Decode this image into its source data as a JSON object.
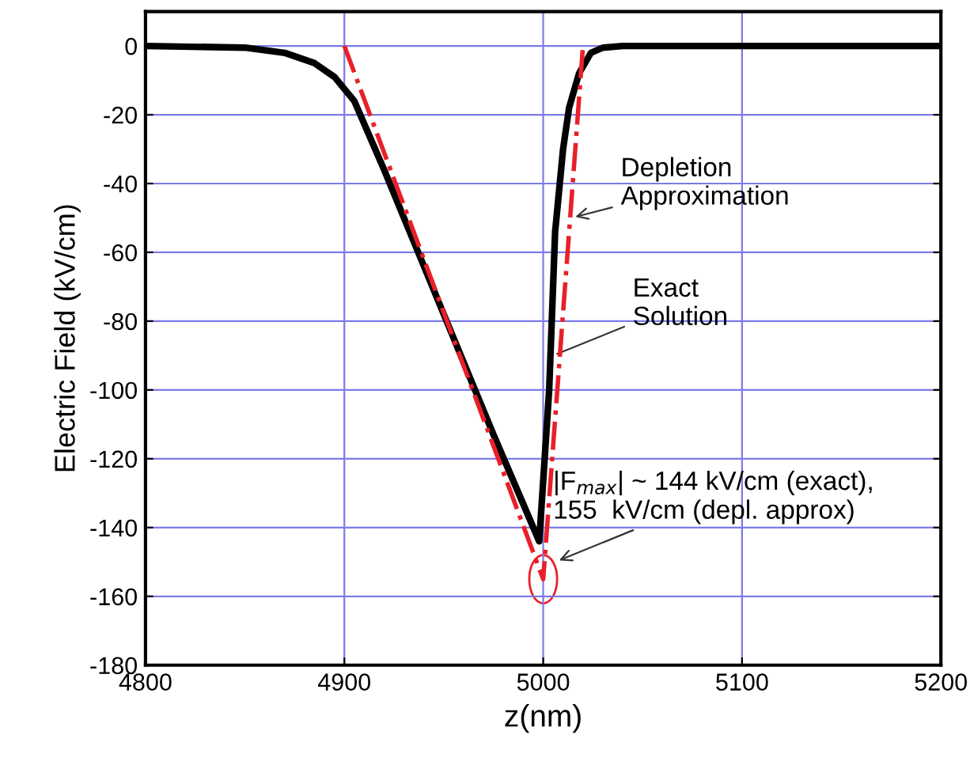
{
  "chart_data": {
    "type": "line",
    "xlabel": "z(nm)",
    "ylabel": "Electric Field (kV/cm)",
    "xlim": [
      4800,
      5200
    ],
    "xticks": [
      4800,
      4900,
      5000,
      5100,
      5200
    ],
    "ylim": [
      -180,
      10
    ],
    "yticks": [
      0,
      -20,
      -40,
      -60,
      -80,
      -100,
      -120,
      -140,
      -160,
      -180
    ],
    "grid": true,
    "legend": false,
    "series": [
      {
        "color": "#000000",
        "line_style": "solid",
        "x": [
          4800,
          4850,
          4870,
          4885,
          4895,
          4905,
          4920,
          4950,
          4975,
          4998,
          5003,
          5006,
          5010,
          5013,
          5018,
          5024,
          5030,
          5040,
          5200
        ],
        "values": [
          0,
          -0.5,
          -2,
          -5,
          -9,
          -16,
          -36,
          -78,
          -113,
          -144,
          -100,
          -54,
          -30,
          -18,
          -8,
          -2,
          -0.5,
          0,
          0
        ]
      },
      {
        "color": "#e8202a",
        "line_style": "dashdot",
        "x": [
          4900,
          5000,
          5020
        ],
        "values": [
          0,
          -155,
          0
        ]
      }
    ],
    "annotations": [
      {
        "text": "Depletion\nApproximation",
        "x": 5014,
        "y": -50
      },
      {
        "text": "Exact\nSolution",
        "x": 5005,
        "y": -90
      },
      {
        "text": "|F$_{max}$| ~ 144 kV/cm (exact),\n155  kV/cm (depl. approx)",
        "x": 5000,
        "y": -150
      }
    ]
  }
}
